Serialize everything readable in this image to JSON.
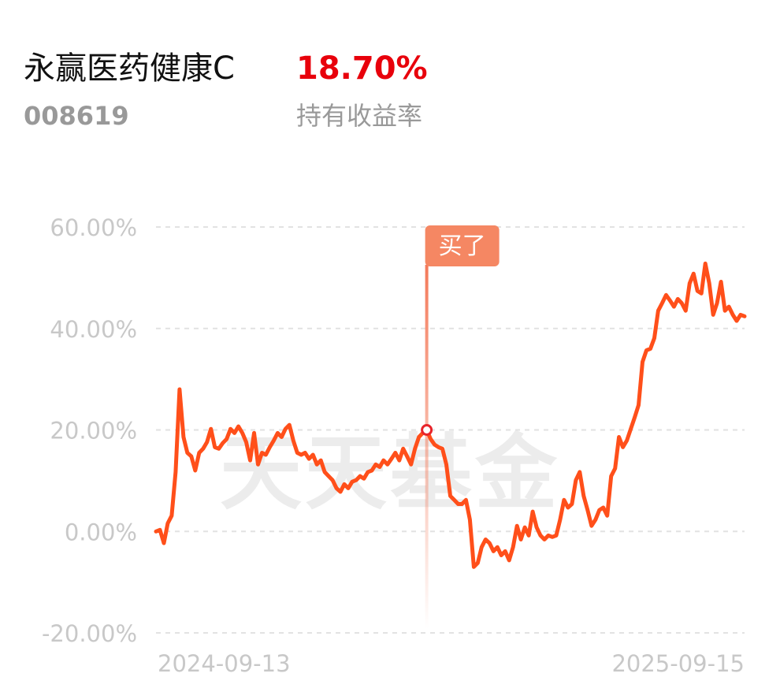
{
  "header": {
    "fund_name": "永赢医药健康C",
    "return_rate": "18.70%",
    "fund_code": "008619",
    "return_label": "持有收益率"
  },
  "chart_data": {
    "type": "line",
    "watermark": "天天基金",
    "annotation": "买了",
    "categories": [
      "2024-09-13",
      null,
      null,
      null,
      null,
      null,
      null,
      null,
      null,
      null,
      null,
      null,
      null,
      null,
      null,
      null,
      null,
      null,
      null,
      null,
      null,
      null,
      null,
      null,
      null,
      null,
      null,
      null,
      null,
      null,
      null,
      null,
      null,
      null,
      null,
      null,
      null,
      null,
      null,
      null,
      null,
      null,
      null,
      null,
      null,
      null,
      null,
      null,
      null,
      null,
      null,
      null,
      null,
      null,
      null,
      null,
      null,
      null,
      null,
      null,
      null,
      null,
      null,
      null,
      null,
      null,
      null,
      null,
      null,
      null,
      null,
      null,
      null,
      null,
      null,
      null,
      null,
      null,
      null,
      null,
      null,
      null,
      null,
      null,
      null,
      null,
      null,
      null,
      null,
      null,
      null,
      null,
      null,
      null,
      null,
      null,
      null,
      null,
      null,
      null,
      null,
      null,
      null,
      null,
      null,
      null,
      null,
      null,
      null,
      null,
      null,
      null,
      null,
      null,
      null,
      null,
      null,
      null,
      null,
      null,
      null,
      null,
      null,
      null,
      null,
      null,
      null,
      null,
      null,
      null,
      null,
      null,
      null,
      null,
      null,
      null,
      null,
      null,
      null,
      null,
      null,
      null,
      null,
      null,
      null,
      null,
      null,
      null,
      null,
      null,
      "2025-09-15"
    ],
    "series": [
      {
        "color": "#ff4f1a",
        "values": [
          0,
          0.3,
          -2.3,
          1.6,
          3.1,
          11.7,
          28.0,
          18.6,
          15.5,
          14.8,
          12.0,
          15.5,
          16.3,
          17.6,
          20.2,
          16.6,
          16.3,
          17.4,
          18.2,
          20.2,
          19.4,
          20.7,
          19.4,
          17.6,
          14.0,
          19.4,
          13.2,
          15.5,
          15.1,
          16.6,
          17.9,
          19.4,
          18.6,
          20.2,
          21.0,
          17.9,
          15.5,
          15.1,
          15.5,
          14.3,
          15.1,
          13.2,
          14.0,
          11.7,
          10.9,
          10.1,
          8.5,
          7.8,
          9.3,
          8.5,
          9.8,
          10.1,
          10.9,
          10.4,
          11.7,
          12.0,
          13.2,
          12.7,
          14.0,
          13.2,
          14.3,
          15.5,
          14.0,
          16.3,
          14.8,
          13.2,
          16.3,
          18.6,
          19.4,
          20.0,
          18.2,
          17.1,
          16.6,
          16.3,
          13.2,
          7.0,
          6.2,
          5.4,
          5.4,
          6.2,
          2.3,
          -7.0,
          -6.2,
          -3.1,
          -1.6,
          -2.3,
          -3.9,
          -3.1,
          -4.7,
          -3.9,
          -5.7,
          -3.1,
          1.1,
          -1.6,
          0.8,
          -0.8,
          3.9,
          0.8,
          -0.8,
          -1.6,
          -0.8,
          -1.1,
          -0.8,
          2.3,
          6.2,
          4.7,
          5.4,
          10.1,
          11.7,
          7.0,
          4.2,
          1.1,
          2.3,
          4.2,
          4.7,
          3.1,
          10.9,
          12.4,
          18.6,
          16.6,
          17.9,
          20.2,
          22.5,
          24.9,
          33.4,
          35.7,
          36.0,
          38.1,
          43.5,
          45.0,
          46.6,
          45.5,
          44.3,
          45.8,
          45.0,
          43.5,
          48.9,
          50.8,
          47.4,
          46.9,
          52.8,
          48.9,
          42.7,
          45.0,
          49.2,
          43.5,
          44.3,
          42.7,
          41.5,
          42.7,
          42.4
        ]
      }
    ],
    "ylim": [
      -20,
      60
    ],
    "yticks": [
      {
        "value": 60,
        "label": "60.00%"
      },
      {
        "value": 40,
        "label": "40.00%"
      },
      {
        "value": 20,
        "label": "20.00%"
      },
      {
        "value": 0,
        "label": "0.00%"
      },
      {
        "value": -20,
        "label": "-20.00%"
      }
    ],
    "grid": true
  }
}
